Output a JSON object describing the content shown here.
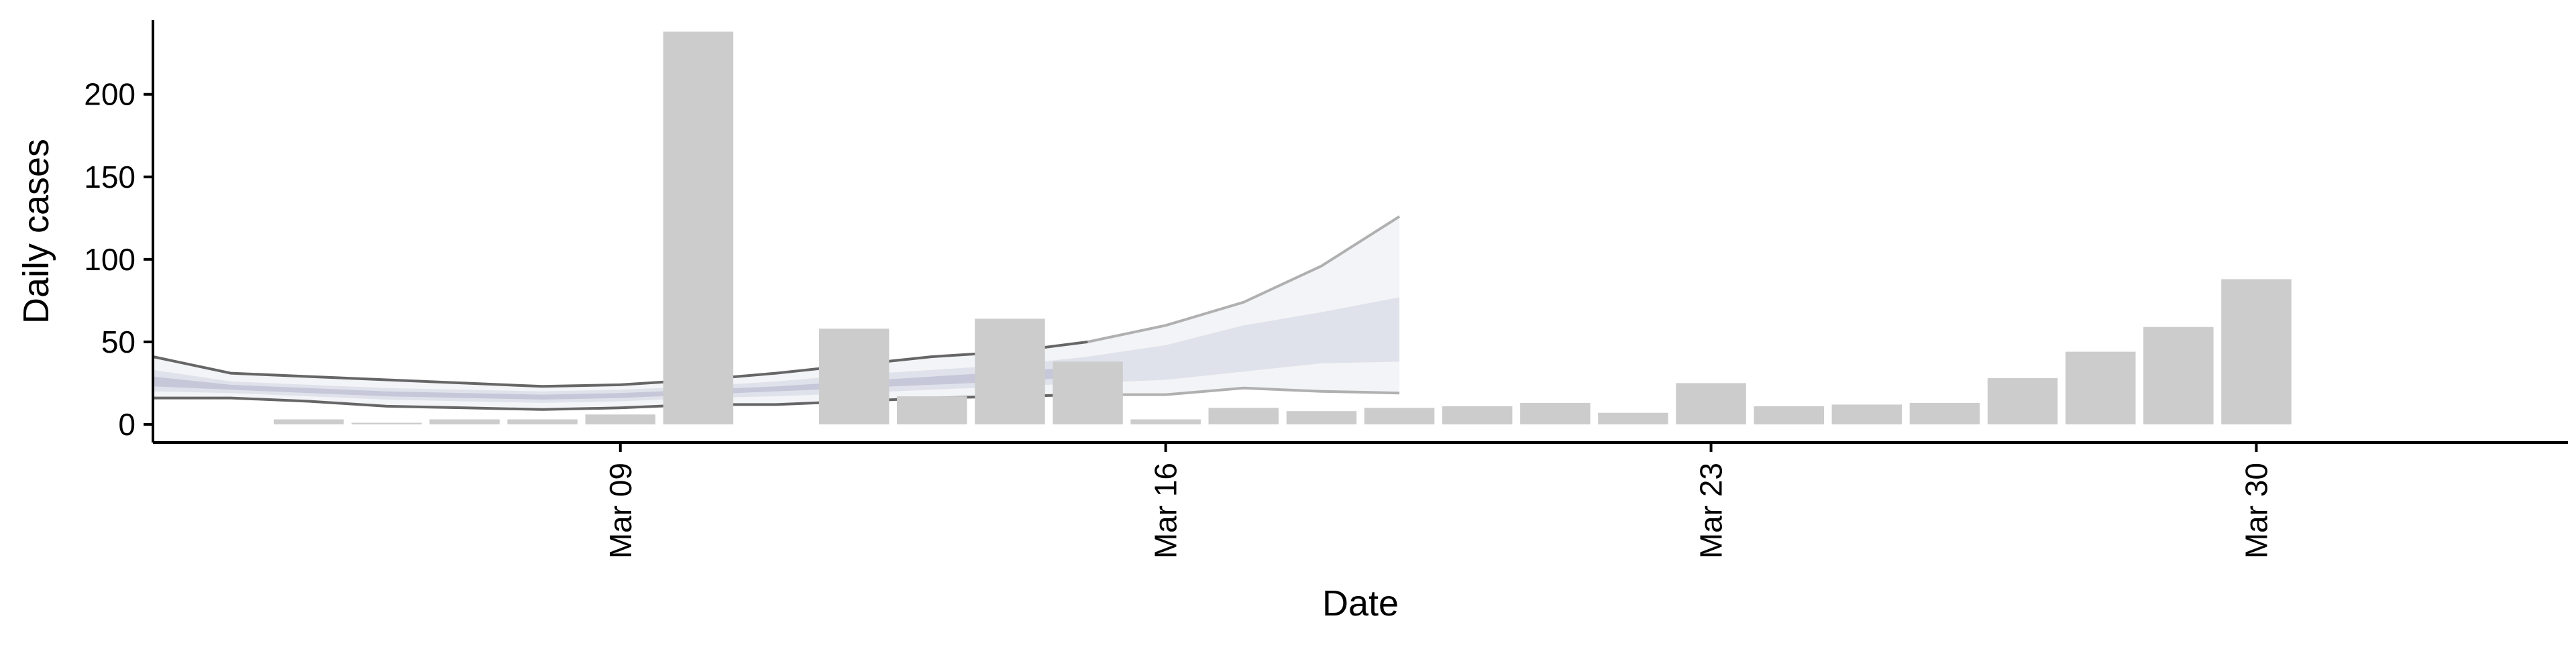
{
  "chart_data": {
    "type": "bar",
    "xlabel": "Date",
    "ylabel": "Daily cases",
    "xlim": [
      "2020-03-03",
      "2020-04-03"
    ],
    "ylim": [
      -11,
      245
    ],
    "x_ticks": [
      {
        "date": "2020-03-09",
        "label": "Mar 09"
      },
      {
        "date": "2020-03-16",
        "label": "Mar 16"
      },
      {
        "date": "2020-03-23",
        "label": "Mar 23"
      },
      {
        "date": "2020-03-30",
        "label": "Mar 30"
      }
    ],
    "y_ticks": [
      0,
      50,
      100,
      150,
      200
    ],
    "grid": false,
    "legend": "none",
    "colors": {
      "bars": "#cccccc",
      "band_outer": "#dedfe8",
      "band_mid": "#c9cbdb",
      "band_inner": "#b4b8cf",
      "line_dark": "#666666",
      "line_light": "#b0b0b0",
      "axis": "#000000"
    },
    "bars": [
      {
        "date": "2020-03-05",
        "value": 3
      },
      {
        "date": "2020-03-06",
        "value": 1
      },
      {
        "date": "2020-03-07",
        "value": 3
      },
      {
        "date": "2020-03-08",
        "value": 3
      },
      {
        "date": "2020-03-09",
        "value": 6
      },
      {
        "date": "2020-03-10",
        "value": 238
      },
      {
        "date": "2020-03-11",
        "value": 0
      },
      {
        "date": "2020-03-12",
        "value": 58
      },
      {
        "date": "2020-03-13",
        "value": 17
      },
      {
        "date": "2020-03-14",
        "value": 64
      },
      {
        "date": "2020-03-15",
        "value": 38
      },
      {
        "date": "2020-03-16",
        "value": 3
      },
      {
        "date": "2020-03-17",
        "value": 10
      },
      {
        "date": "2020-03-18",
        "value": 8
      },
      {
        "date": "2020-03-19",
        "value": 10
      },
      {
        "date": "2020-03-20",
        "value": 11
      },
      {
        "date": "2020-03-21",
        "value": 13
      },
      {
        "date": "2020-03-22",
        "value": 7
      },
      {
        "date": "2020-03-23",
        "value": 25
      },
      {
        "date": "2020-03-24",
        "value": 11
      },
      {
        "date": "2020-03-25",
        "value": 12
      },
      {
        "date": "2020-03-26",
        "value": 13
      },
      {
        "date": "2020-03-27",
        "value": 28
      },
      {
        "date": "2020-03-28",
        "value": 44
      },
      {
        "date": "2020-03-29",
        "value": 59
      },
      {
        "date": "2020-03-30",
        "value": 88
      }
    ],
    "estimate_bands": [
      {
        "level": "outer",
        "segments": [
          {
            "x": [
              "2020-03-03",
              "2020-03-04",
              "2020-03-05",
              "2020-03-06",
              "2020-03-07",
              "2020-03-08",
              "2020-03-09",
              "2020-03-10",
              "2020-03-11",
              "2020-03-12",
              "2020-03-13",
              "2020-03-14",
              "2020-03-15",
              "2020-03-16",
              "2020-03-17",
              "2020-03-18"
            ],
            "low": [
              16,
              16,
              14,
              11,
              10,
              9,
              10,
              12,
              12,
              14,
              16,
              17,
              18,
              18,
              22,
              20
            ],
            "high": [
              41,
              31,
              29,
              27,
              25,
              23,
              24,
              27,
              31,
              36,
              41,
              44,
              50,
              60,
              74,
              96
            ]
          },
          {
            "x": [
              "2020-03-18",
              "2020-03-19"
            ],
            "low": [
              20,
              19
            ],
            "high": [
              96,
              126
            ]
          }
        ]
      },
      {
        "level": "mid",
        "segments": [
          {
            "x": [
              "2020-03-03",
              "2020-03-04",
              "2020-03-05",
              "2020-03-06",
              "2020-03-07",
              "2020-03-08",
              "2020-03-09",
              "2020-03-10",
              "2020-03-11",
              "2020-03-12",
              "2020-03-13",
              "2020-03-14",
              "2020-03-15",
              "2020-03-16",
              "2020-03-17",
              "2020-03-18"
            ],
            "low": [
              20,
              19,
              17,
              15,
              14,
              13,
              14,
              16,
              17,
              19,
              21,
              23,
              25,
              27,
              32,
              37
            ],
            "high": [
              33,
              26,
              24,
              22,
              21,
              20,
              21,
              23,
              26,
              30,
              33,
              36,
              41,
              48,
              60,
              68
            ]
          },
          {
            "x": [
              "2020-03-18",
              "2020-03-19"
            ],
            "low": [
              37,
              38
            ],
            "high": [
              68,
              77
            ]
          }
        ]
      },
      {
        "level": "inner",
        "segments": [
          {
            "x": [
              "2020-03-03",
              "2020-03-04",
              "2020-03-05",
              "2020-03-06",
              "2020-03-07",
              "2020-03-08",
              "2020-03-09",
              "2020-03-10",
              "2020-03-11",
              "2020-03-12",
              "2020-03-13",
              "2020-03-14",
              "2020-03-15"
            ],
            "low": [
              23,
              21,
              19,
              17,
              16,
              15,
              16,
              18,
              20,
              22,
              24,
              26,
              29
            ],
            "high": [
              29,
              24,
              22,
              20,
              19,
              18,
              19,
              21,
              23,
              26,
              29,
              32,
              35
            ]
          }
        ]
      }
    ],
    "estimate_lines": [
      {
        "style": "dark",
        "x": [
          "2020-03-03",
          "2020-03-04",
          "2020-03-05",
          "2020-03-06",
          "2020-03-07",
          "2020-03-08",
          "2020-03-09",
          "2020-03-10",
          "2020-03-11",
          "2020-03-12",
          "2020-03-13",
          "2020-03-14",
          "2020-03-15"
        ],
        "upper": [
          41,
          31,
          29,
          27,
          25,
          23,
          24,
          27,
          31,
          36,
          41,
          44,
          50
        ],
        "lower": [
          16,
          16,
          14,
          11,
          10,
          9,
          10,
          12,
          12,
          14,
          16,
          17,
          18
        ]
      },
      {
        "style": "light",
        "x": [
          "2020-03-15",
          "2020-03-16",
          "2020-03-17",
          "2020-03-18",
          "2020-03-19"
        ],
        "upper": [
          50,
          60,
          74,
          96,
          126
        ],
        "lower": [
          18,
          18,
          22,
          20,
          19
        ]
      }
    ]
  }
}
